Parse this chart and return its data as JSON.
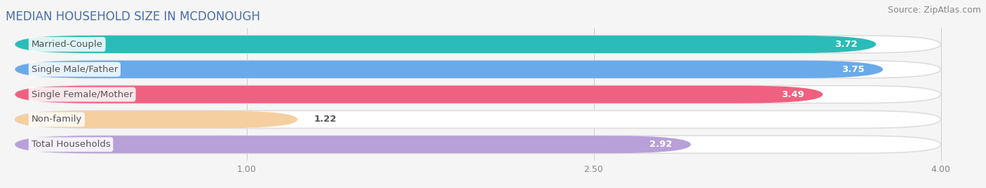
{
  "title": "MEDIAN HOUSEHOLD SIZE IN MCDONOUGH",
  "source": "Source: ZipAtlas.com",
  "categories": [
    "Married-Couple",
    "Single Male/Father",
    "Single Female/Mother",
    "Non-family",
    "Total Households"
  ],
  "values": [
    3.72,
    3.75,
    3.49,
    1.22,
    2.92
  ],
  "bar_colors": [
    "#2bbcb8",
    "#6aaae8",
    "#f06080",
    "#f5cfa0",
    "#b8a0d8"
  ],
  "xlim_min": 0.0,
  "xlim_max": 4.15,
  "data_min": 0.0,
  "data_max": 4.0,
  "xticks": [
    1.0,
    2.5,
    4.0
  ],
  "fig_bg": "#f5f5f5",
  "bar_bg_color": "#e8e8ec",
  "title_fontsize": 12,
  "source_fontsize": 9,
  "bar_label_fontsize": 9.5,
  "category_fontsize": 9.5,
  "bar_height": 0.7,
  "bar_gap": 1.0
}
